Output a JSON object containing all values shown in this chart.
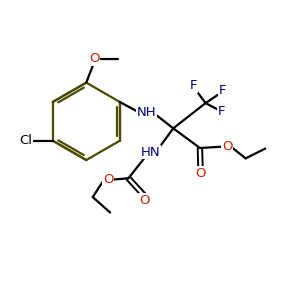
{
  "background": "#ffffff",
  "ring_color": "#4a4a00",
  "bond_color": "#000000",
  "o_color": "#cc2200",
  "n_color": "#000080",
  "f_color": "#000080",
  "cl_color": "#000000",
  "figsize": [
    2.82,
    3.03
  ],
  "dpi": 100,
  "xlim": [
    0,
    10
  ],
  "ylim": [
    0,
    10.75
  ]
}
